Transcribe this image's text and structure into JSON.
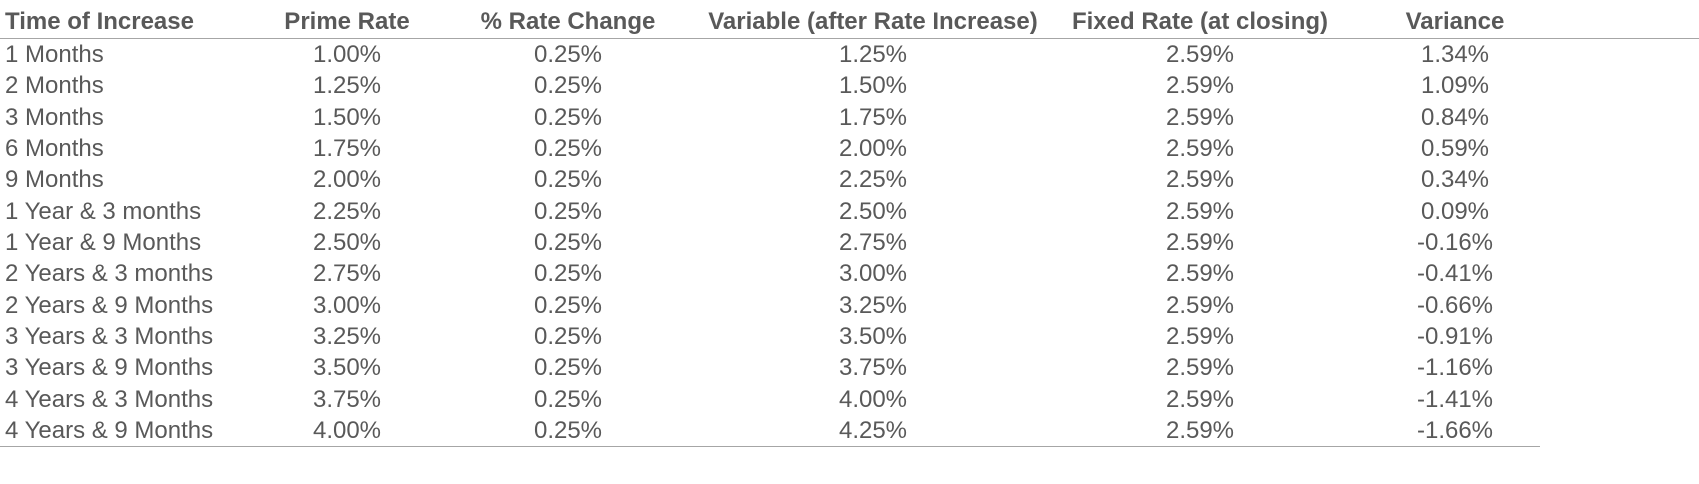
{
  "table": {
    "headers": [
      "Time of Increase",
      "Prime Rate",
      "% Rate Change",
      "Variable (after Rate Increase)",
      "Fixed Rate (at closing)",
      "Variance"
    ],
    "rows": [
      [
        "1 Months",
        "1.00%",
        "0.25%",
        "1.25%",
        "2.59%",
        "1.34%"
      ],
      [
        "2 Months",
        "1.25%",
        "0.25%",
        "1.50%",
        "2.59%",
        "1.09%"
      ],
      [
        "3 Months",
        "1.50%",
        "0.25%",
        "1.75%",
        "2.59%",
        "0.84%"
      ],
      [
        "6 Months",
        "1.75%",
        "0.25%",
        "2.00%",
        "2.59%",
        "0.59%"
      ],
      [
        "9 Months",
        "2.00%",
        "0.25%",
        "2.25%",
        "2.59%",
        "0.34%"
      ],
      [
        "1 Year & 3 months",
        "2.25%",
        "0.25%",
        "2.50%",
        "2.59%",
        "0.09%"
      ],
      [
        "1 Year & 9 Months",
        "2.50%",
        "0.25%",
        "2.75%",
        "2.59%",
        "-0.16%"
      ],
      [
        "2 Years & 3 months",
        "2.75%",
        "0.25%",
        "3.00%",
        "2.59%",
        "-0.41%"
      ],
      [
        "2 Years & 9 Months",
        "3.00%",
        "0.25%",
        "3.25%",
        "2.59%",
        "-0.66%"
      ],
      [
        "3 Years & 3 Months",
        "3.25%",
        "0.25%",
        "3.50%",
        "2.59%",
        "-0.91%"
      ],
      [
        "3 Years & 9 Months",
        "3.50%",
        "0.25%",
        "3.75%",
        "2.59%",
        "-1.16%"
      ],
      [
        "4 Years & 3 Months",
        "3.75%",
        "0.25%",
        "4.00%",
        "2.59%",
        "-1.41%"
      ],
      [
        "4 Years & 9 Months",
        "4.00%",
        "0.25%",
        "4.25%",
        "2.59%",
        "-1.66%"
      ]
    ]
  }
}
